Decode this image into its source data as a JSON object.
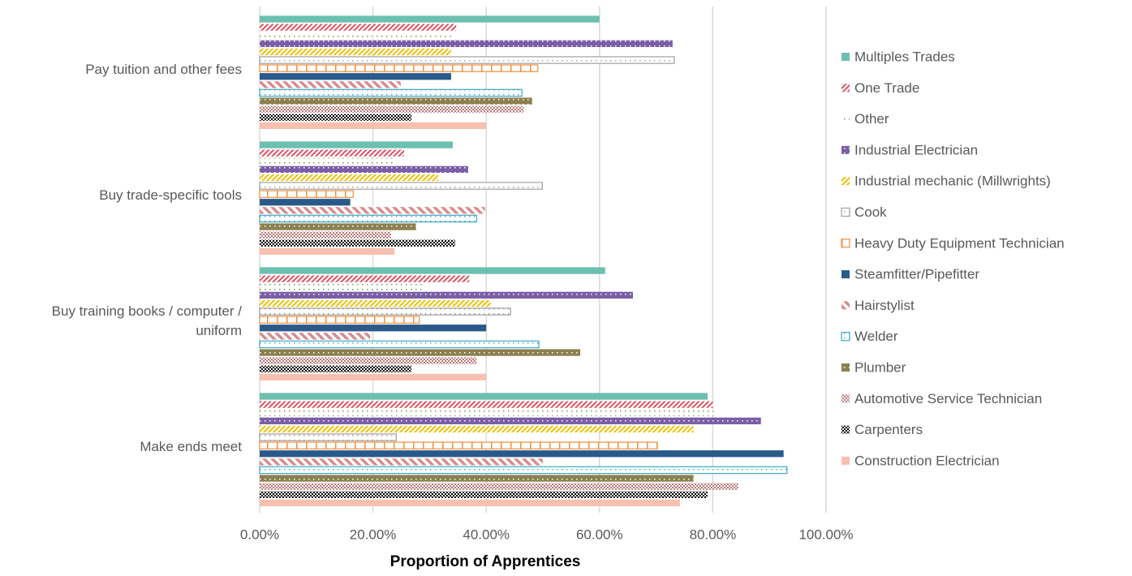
{
  "chart_data": {
    "type": "hbar",
    "xlabel": "Proportion of Apprentices",
    "categories": [
      "Pay tuition and other fees",
      "Buy trade-specific tools",
      "Buy training books / computer / uniform",
      "Make ends meet"
    ],
    "xlim": [
      0,
      100
    ],
    "xticks": [
      {
        "value": 0,
        "label": "0.00%"
      },
      {
        "value": 20,
        "label": "20.00%"
      },
      {
        "value": 40,
        "label": "40.00%"
      },
      {
        "value": 60,
        "label": "60.00%"
      },
      {
        "value": 80,
        "label": "80.00%"
      },
      {
        "value": 100,
        "label": "100.00%"
      }
    ],
    "grid": true,
    "legend": "right",
    "series": [
      {
        "name": "Multiples Trades",
        "color": "#6cc0b0",
        "pattern": "solid",
        "values": [
          60.0,
          34.1,
          61.0,
          79.1
        ]
      },
      {
        "name": "One Trade",
        "color": "#e05060",
        "pattern": "diagonal",
        "values": [
          34.7,
          25.5,
          37.0,
          80.0
        ]
      },
      {
        "name": "Other",
        "color": "#70a040",
        "pattern": "dotted",
        "values": [
          34.1,
          23.8,
          29.1,
          80.2
        ]
      },
      {
        "name": "Industrial Electrician",
        "color": "#7b5ea7",
        "pattern": "dots-on",
        "values": [
          72.9,
          36.8,
          65.9,
          88.5
        ]
      },
      {
        "name": "Industrial mechanic (Millwrights)",
        "color": "#f0c000",
        "pattern": "diagonal",
        "values": [
          33.8,
          31.5,
          40.8,
          76.6
        ]
      },
      {
        "name": "Cook",
        "color": "#a0a0a0",
        "pattern": "dotted-outline",
        "values": [
          73.2,
          49.9,
          44.3,
          24.1
        ]
      },
      {
        "name": "Heavy Duty Equipment Technician",
        "color": "#f0903c",
        "pattern": "vertical-outline",
        "values": [
          49.1,
          16.5,
          28.2,
          70.2
        ]
      },
      {
        "name": "Steamfitter/Pipefitter",
        "color": "#2a5a8a",
        "pattern": "solid",
        "values": [
          33.8,
          16.0,
          40.0,
          92.5
        ]
      },
      {
        "name": "Hairstylist",
        "color": "#d88a8a",
        "pattern": "wide-diagonal",
        "values": [
          24.9,
          39.8,
          19.5,
          50.0
        ]
      },
      {
        "name": "Welder",
        "color": "#40a8c8",
        "pattern": "dotted-outline",
        "values": [
          46.3,
          38.3,
          49.3,
          93.1
        ]
      },
      {
        "name": "Plumber",
        "color": "#8c8050",
        "pattern": "dots-on",
        "values": [
          48.1,
          27.6,
          56.6,
          76.6
        ]
      },
      {
        "name": "Automotive Service Technician",
        "color": "#b87878",
        "pattern": "checker",
        "values": [
          46.6,
          23.2,
          38.3,
          84.5
        ]
      },
      {
        "name": "Carpenters",
        "color": "#000000",
        "pattern": "checker",
        "values": [
          26.8,
          34.5,
          26.8,
          79.1
        ]
      },
      {
        "name": "Construction Electrician",
        "color": "#f8c0b0",
        "pattern": "solid",
        "values": [
          40.0,
          23.8,
          40.0,
          74.2
        ]
      }
    ]
  }
}
